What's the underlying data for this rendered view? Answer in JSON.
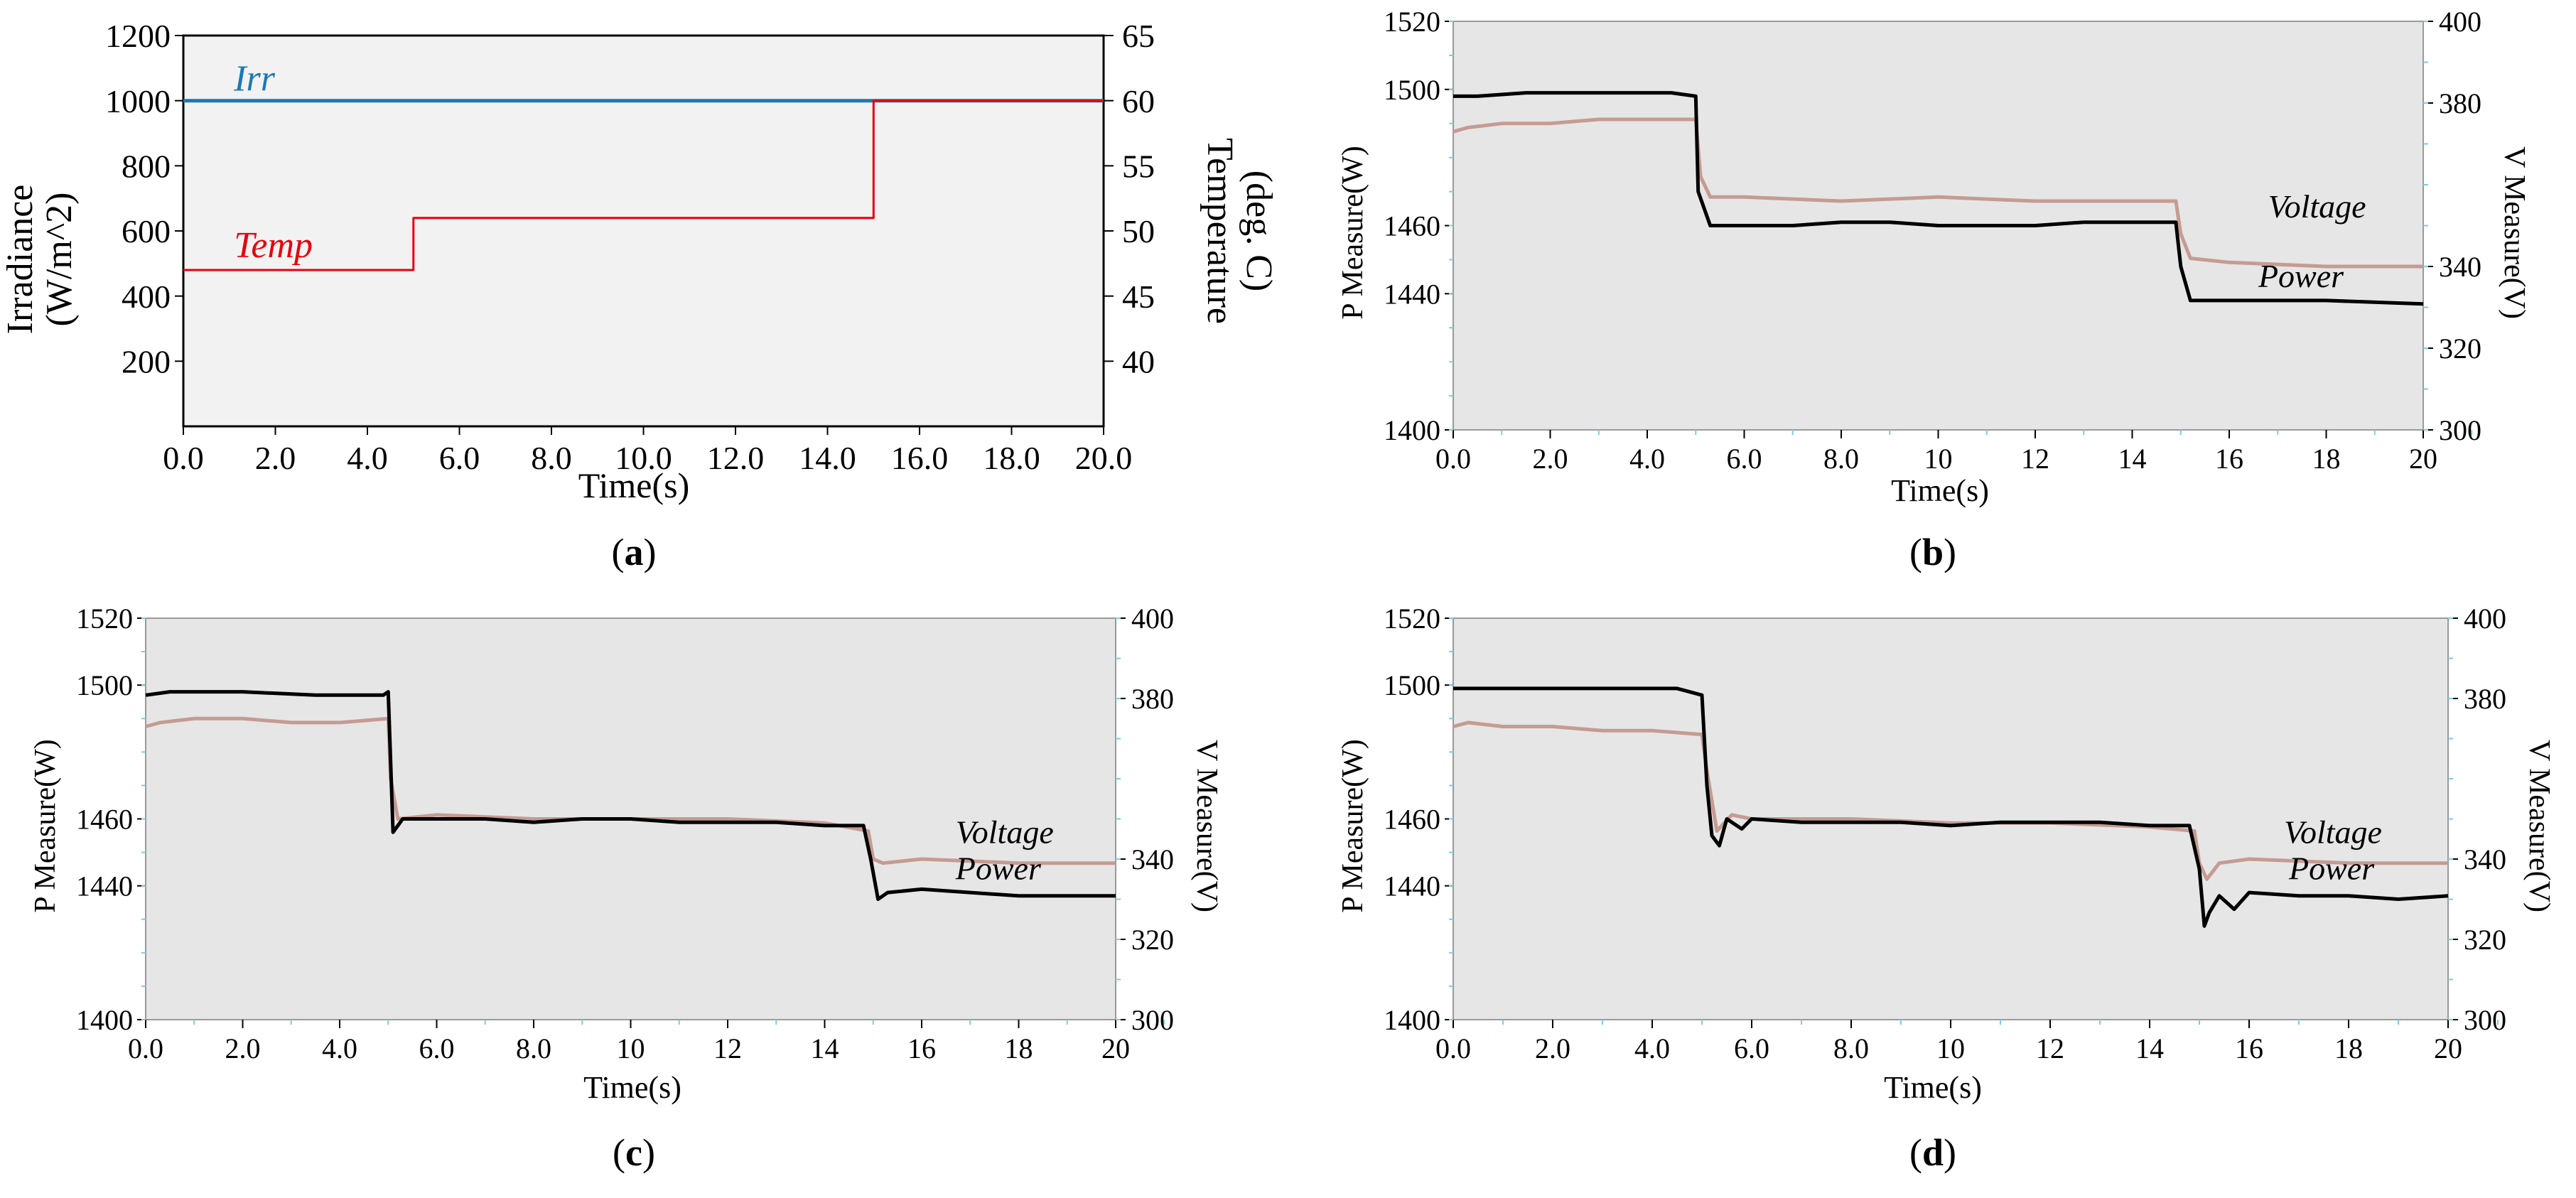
{
  "chart_data": [
    {
      "type": "line",
      "panel_label": "a",
      "xlabel": "Time(s)",
      "ylabel_left": [
        "Irradiance",
        "(W/m^2)"
      ],
      "ylabel_right": [
        "Temperature",
        "(deg. C)"
      ],
      "xlim": [
        0,
        20
      ],
      "ylim_left": [
        0,
        1200
      ],
      "ylim_right": [
        35,
        65
      ],
      "x_ticks": [
        "0.0",
        "2.0",
        "4.0",
        "6.0",
        "8.0",
        "10.0",
        "12.0",
        "14.0",
        "16.0",
        "18.0",
        "20.0"
      ],
      "y_ticks_left": [
        "200",
        "400",
        "600",
        "800",
        "1000",
        "1200"
      ],
      "y_ticks_right": [
        "40",
        "45",
        "50",
        "55",
        "60",
        "65"
      ],
      "colors": {
        "plot_bg": "#f2f2f2",
        "irr": "#1f77b4",
        "temp": "#e8000b"
      },
      "series": [
        {
          "name": "Irr",
          "axis": "left",
          "x": [
            0,
            20
          ],
          "y": [
            1000,
            1000
          ]
        },
        {
          "name": "Temp",
          "axis": "right",
          "x": [
            0,
            5,
            5,
            15,
            15,
            20
          ],
          "y": [
            47,
            47,
            51,
            51,
            60,
            60
          ]
        }
      ]
    },
    {
      "type": "line",
      "panel_label": "b",
      "xlabel": "Time(s)",
      "ylabel_left": "P Measure(W)",
      "ylabel_right": "V Measure(V)",
      "xlim": [
        0,
        20
      ],
      "ylim_left": [
        1400,
        1520
      ],
      "ylim_right": [
        300,
        400
      ],
      "x_ticks": [
        "0.0",
        "2.0",
        "4.0",
        "6.0",
        "8.0",
        "10",
        "12",
        "14",
        "16",
        "18",
        "20"
      ],
      "y_ticks_left": [
        "1400",
        "1440",
        "1460",
        "1500",
        "1520"
      ],
      "y_ticks_right": [
        "300",
        "320",
        "340",
        "380",
        "400"
      ],
      "colors": {
        "plot_bg": "#e6e6e6",
        "power": "#000000",
        "voltage": "#c59b92"
      },
      "series": [
        {
          "name": "Voltage",
          "axis": "right",
          "x": [
            0,
            0.3,
            1.0,
            2.0,
            3.0,
            4.0,
            5.0,
            5.1,
            5.3,
            6.0,
            8.0,
            10.0,
            12.0,
            14.0,
            14.9,
            15.0,
            15.2,
            16.0,
            18.0,
            20.0
          ],
          "y": [
            373,
            374,
            375,
            375,
            376,
            376,
            376,
            362,
            357,
            357,
            356,
            357,
            356,
            356,
            356,
            348,
            342,
            341,
            340,
            340
          ]
        },
        {
          "name": "Power",
          "axis": "left",
          "x": [
            0,
            0.5,
            1.5,
            2.5,
            3.5,
            4.5,
            5.0,
            5.05,
            5.3,
            6.0,
            7.0,
            8.0,
            9.0,
            10.0,
            11.0,
            12.0,
            13.0,
            14.0,
            14.9,
            15.0,
            15.2,
            16.0,
            18.0,
            20.0
          ],
          "y": [
            1498,
            1498,
            1499,
            1499,
            1499,
            1499,
            1498,
            1470,
            1460,
            1460,
            1460,
            1461,
            1461,
            1460,
            1460,
            1460,
            1461,
            1461,
            1461,
            1448,
            1438,
            1438,
            1438,
            1437
          ]
        }
      ],
      "annotations": [
        "Voltage",
        "Power"
      ]
    },
    {
      "type": "line",
      "panel_label": "c",
      "xlabel": "Time(s)",
      "ylabel_left": "P Measure(W)",
      "ylabel_right": "V Measure(V)",
      "xlim": [
        0,
        20
      ],
      "ylim_left": [
        1400,
        1520
      ],
      "ylim_right": [
        300,
        400
      ],
      "x_ticks": [
        "0.0",
        "2.0",
        "4.0",
        "6.0",
        "8.0",
        "10",
        "12",
        "14",
        "16",
        "18",
        "20"
      ],
      "y_ticks_left": [
        "1400",
        "1440",
        "1460",
        "1500",
        "1520"
      ],
      "y_ticks_right": [
        "300",
        "320",
        "340",
        "380",
        "400"
      ],
      "colors": {
        "plot_bg": "#e6e6e6",
        "power": "#000000",
        "voltage": "#c59b92"
      },
      "series": [
        {
          "name": "Voltage",
          "axis": "right",
          "x": [
            0,
            0.3,
            1.0,
            2.0,
            3.0,
            4.0,
            5.0,
            5.05,
            5.2,
            6.0,
            8.0,
            10.0,
            12.0,
            14.0,
            14.9,
            15.0,
            15.2,
            16.0,
            18.0,
            20.0
          ],
          "y": [
            373,
            374,
            375,
            375,
            374,
            374,
            375,
            360,
            350,
            351,
            350,
            350,
            350,
            349,
            347,
            340,
            339,
            340,
            339,
            339
          ]
        },
        {
          "name": "Power",
          "axis": "left",
          "x": [
            0,
            0.5,
            2.0,
            3.5,
            4.5,
            4.9,
            5.0,
            5.1,
            5.3,
            6.0,
            7.0,
            8.0,
            9.0,
            10.0,
            11.0,
            12.0,
            13.0,
            14.0,
            14.8,
            14.95,
            15.1,
            15.3,
            16.0,
            18.0,
            20.0
          ],
          "y": [
            1497,
            1498,
            1498,
            1497,
            1497,
            1497,
            1498,
            1456,
            1460,
            1460,
            1460,
            1459,
            1460,
            1460,
            1459,
            1459,
            1459,
            1458,
            1458,
            1448,
            1436,
            1438,
            1439,
            1437,
            1437
          ]
        }
      ],
      "annotations": [
        "Voltage",
        "Power"
      ]
    },
    {
      "type": "line",
      "panel_label": "d",
      "xlabel": "Time(s)",
      "ylabel_left": "P Measure(W)",
      "ylabel_right": "V Measure(V)",
      "xlim": [
        0,
        20
      ],
      "ylim_left": [
        1400,
        1520
      ],
      "ylim_right": [
        300,
        400
      ],
      "x_ticks": [
        "0.0",
        "2.0",
        "4.0",
        "6.0",
        "8.0",
        "10",
        "12",
        "14",
        "16",
        "18",
        "20"
      ],
      "y_ticks_left": [
        "1400",
        "1440",
        "1460",
        "1500",
        "1520"
      ],
      "y_ticks_right": [
        "300",
        "320",
        "340",
        "380",
        "400"
      ],
      "colors": {
        "plot_bg": "#e6e6e6",
        "power": "#000000",
        "voltage": "#c59b92"
      },
      "series": [
        {
          "name": "Voltage",
          "axis": "right",
          "x": [
            0,
            0.3,
            1.0,
            2.0,
            3.0,
            4.0,
            5.0,
            5.1,
            5.3,
            5.6,
            6.0,
            8.0,
            10.0,
            12.0,
            14.0,
            14.9,
            15.0,
            15.15,
            15.4,
            16.0,
            18.0,
            20.0
          ],
          "y": [
            373,
            374,
            373,
            373,
            372,
            372,
            371,
            362,
            347,
            351,
            350,
            350,
            349,
            349,
            348,
            347,
            339,
            335,
            339,
            340,
            339,
            339
          ]
        },
        {
          "name": "Power",
          "axis": "left",
          "x": [
            0,
            0.5,
            1.5,
            2.5,
            3.5,
            4.5,
            5.0,
            5.1,
            5.2,
            5.35,
            5.5,
            5.8,
            6.0,
            7.0,
            8.0,
            9.0,
            10.0,
            11.0,
            12.0,
            13.0,
            14.0,
            14.8,
            15.0,
            15.1,
            15.2,
            15.4,
            15.7,
            16.0,
            17.0,
            18.0,
            19.0,
            20.0
          ],
          "y": [
            1499,
            1499,
            1499,
            1499,
            1499,
            1499,
            1497,
            1470,
            1455,
            1452,
            1460,
            1457,
            1460,
            1459,
            1459,
            1459,
            1458,
            1459,
            1459,
            1459,
            1458,
            1458,
            1445,
            1428,
            1432,
            1437,
            1433,
            1438,
            1437,
            1437,
            1436,
            1437
          ]
        }
      ],
      "annotations": [
        "Voltage",
        "Power"
      ]
    }
  ]
}
